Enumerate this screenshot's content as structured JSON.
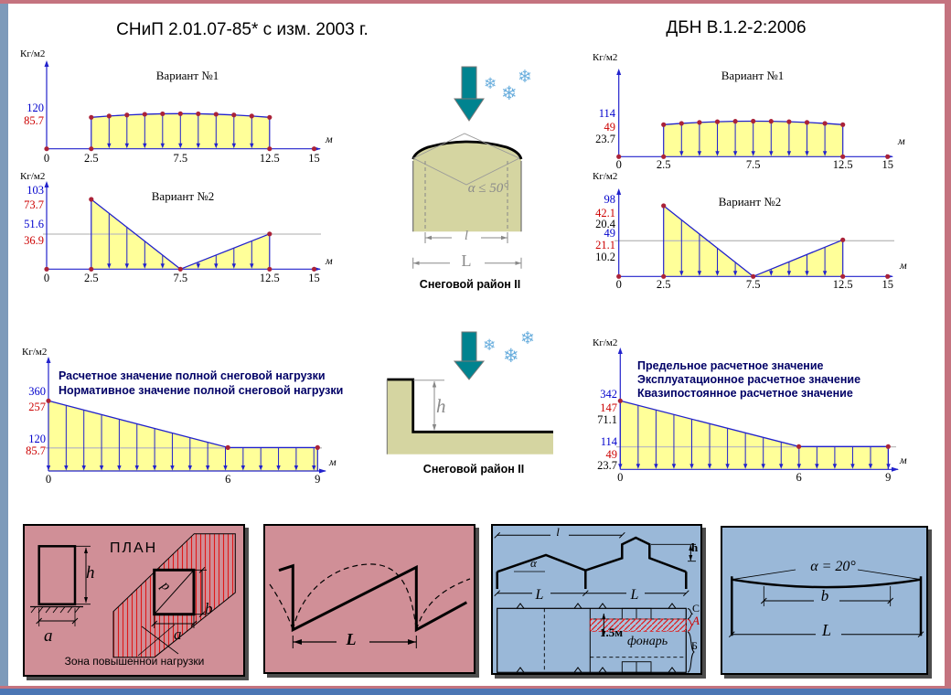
{
  "titles": {
    "left": "СНиП 2.01.07-85* с изм. 2003 г.",
    "right": "ДБН В.1.2-2:2006"
  },
  "colors": {
    "blue": "#0000cc",
    "red": "#cc0000",
    "black": "#000000",
    "navy": "#000066",
    "axis": "#2222cc",
    "dot": "#aa2238",
    "yellow": "#ffff99",
    "gray_line": "#bdbdbd",
    "panel_pink": "#d08f97",
    "panel_blue": "#9ab8d8",
    "building": "#d5d5a1",
    "arrow_teal": "#00838f",
    "snowflake": "#6aaedd",
    "hatch_red": "#e01818"
  },
  "icons": {
    "snowflake": "❄"
  },
  "charts": {
    "snip_v1": {
      "unit": "Кг/м2",
      "x_unit": "м",
      "title": "Вариант №1",
      "y_labels": [
        {
          "text": "120",
          "color": "blue"
        },
        {
          "text": "85.7",
          "color": "red"
        }
      ],
      "x_ticks": [
        "0",
        "2.5",
        "7.5",
        "12.5",
        "15"
      ]
    },
    "snip_v2": {
      "unit": "Кг/м2",
      "x_unit": "м",
      "title": "Вариант №2",
      "y_labels": [
        {
          "text": "103",
          "color": "blue"
        },
        {
          "text": "73.7",
          "color": "red"
        },
        {
          "text": "51.6",
          "color": "blue"
        },
        {
          "text": "36.9",
          "color": "red"
        }
      ],
      "x_ticks": [
        "0",
        "2.5",
        "7.5",
        "12.5",
        "15"
      ]
    },
    "dbn_v1": {
      "unit": "Кг/м2",
      "x_unit": "м",
      "title": "Вариант №1",
      "y_labels": [
        {
          "text": "114",
          "color": "blue"
        },
        {
          "text": "49",
          "color": "red"
        },
        {
          "text": "23.7",
          "color": "black"
        }
      ],
      "x_ticks": [
        "0",
        "2.5",
        "7.5",
        "12.5",
        "15"
      ]
    },
    "dbn_v2": {
      "unit": "Кг/м2",
      "x_unit": "м",
      "title": "Вариант №2",
      "y_labels": [
        {
          "text": "98",
          "color": "blue"
        },
        {
          "text": "42.1",
          "color": "red"
        },
        {
          "text": "20.4",
          "color": "black"
        },
        {
          "text": "49",
          "color": "blue"
        },
        {
          "text": "21.1",
          "color": "red"
        },
        {
          "text": "10.2",
          "color": "black"
        }
      ],
      "x_ticks": [
        "0",
        "2.5",
        "7.5",
        "12.5",
        "15"
      ]
    },
    "snip_full": {
      "unit": "Кг/м2",
      "x_unit": "м",
      "annotations": [
        "Расчетное значение полной снеговой нагрузки",
        "Нормативное значение полной снеговой нагрузки"
      ],
      "y_labels": [
        {
          "text": "360",
          "color": "blue"
        },
        {
          "text": "257",
          "color": "red"
        },
        {
          "text": "120",
          "color": "blue"
        },
        {
          "text": "85.7",
          "color": "red"
        }
      ],
      "x_ticks": [
        "0",
        "6",
        "9"
      ]
    },
    "dbn_full": {
      "unit": "Кг/м2",
      "x_unit": "м",
      "annotations": [
        "Предельное расчетное значение",
        "Эксплуатационное расчетное значение",
        "Квазипостоянное расчетное значение"
      ],
      "y_labels": [
        {
          "text": "342",
          "color": "blue"
        },
        {
          "text": "147",
          "color": "red"
        },
        {
          "text": "71.1",
          "color": "black"
        },
        {
          "text": "114",
          "color": "blue"
        },
        {
          "text": "49",
          "color": "red"
        },
        {
          "text": "23.7",
          "color": "black"
        }
      ],
      "x_ticks": [
        "0",
        "6",
        "9"
      ]
    }
  },
  "center": {
    "top": {
      "caption": "Снеговой район II",
      "angle": "α ≤ 50°",
      "dim_inner": "l",
      "dim_outer": "L"
    },
    "bottom": {
      "caption": "Снеговой район II",
      "height": "h"
    }
  },
  "panels": {
    "plan": {
      "title": "ПЛАН",
      "caption": "Зона повышеннои нагрузки",
      "h": "h",
      "a_left": "a",
      "d": "d",
      "b": "b",
      "a_right": "a"
    },
    "sawtooth": {
      "L": "L"
    },
    "lantern": {
      "l": "l",
      "alpha": "α",
      "h": "h",
      "L_left": "L",
      "L_right": "L",
      "strip": "1.5м",
      "name": "фонарь",
      "zone_c": "С",
      "zone_a": "А",
      "zone_b": "Б"
    },
    "sag": {
      "angle": "α = 20°",
      "b": "b",
      "L": "L"
    }
  },
  "chart_data": [
    {
      "type": "area",
      "code": "СНиП 2.01.07-85* с изм. 2003 г.",
      "title": "Вариант №1",
      "ylabel": "Кг/м2",
      "xlabel": "м",
      "xlim": [
        0,
        15
      ],
      "span": [
        2.5,
        12.5
      ],
      "series": [
        {
          "name": "расчетное значение",
          "value": 120
        },
        {
          "name": "нормативное значение",
          "value": 85.7
        }
      ],
      "shape": "uniform load over span 2.5–12.5 m, slightly arched"
    },
    {
      "type": "area",
      "code": "СНиП 2.01.07-85* с изм. 2003 г.",
      "title": "Вариант №2",
      "ylabel": "Кг/м2",
      "xlabel": "м",
      "xlim": [
        0,
        15
      ],
      "x": [
        2.5,
        7.5,
        12.5
      ],
      "series": [
        {
          "name": "расчетное значение",
          "values": [
            103,
            0,
            51.6
          ]
        },
        {
          "name": "нормативное значение",
          "values": [
            73.7,
            0,
            36.9
          ]
        }
      ],
      "shape": "triangular drift load, zero at mid-span 7.5 m"
    },
    {
      "type": "area",
      "code": "ДБН В.1.2-2:2006",
      "title": "Вариант №1",
      "ylabel": "Кг/м2",
      "xlabel": "м",
      "xlim": [
        0,
        15
      ],
      "span": [
        2.5,
        12.5
      ],
      "series": [
        {
          "name": "предельное расчетное значение",
          "value": 114
        },
        {
          "name": "эксплуатационное расчетное значение",
          "value": 49
        },
        {
          "name": "квазипостоянное расчетное значение",
          "value": 23.7
        }
      ],
      "shape": "uniform load over span 2.5–12.5 m, slightly arched"
    },
    {
      "type": "area",
      "code": "ДБН В.1.2-2:2006",
      "title": "Вариант №2",
      "ylabel": "Кг/м2",
      "xlabel": "м",
      "xlim": [
        0,
        15
      ],
      "x": [
        2.5,
        7.5,
        12.5
      ],
      "series": [
        {
          "name": "предельное расчетное значение",
          "values": [
            98,
            0,
            49
          ]
        },
        {
          "name": "эксплуатационное расчетное значение",
          "values": [
            42.1,
            0,
            21.1
          ]
        },
        {
          "name": "квазипостоянное расчетное значение",
          "values": [
            20.4,
            0,
            10.2
          ]
        }
      ],
      "shape": "triangular drift load, zero at mid-span 7.5 m"
    },
    {
      "type": "area",
      "code": "СНиП 2.01.07-85* с изм. 2003 г.",
      "annotations": [
        "Расчетное значение полной снеговой нагрузки",
        "Нормативное значение полной снеговой нагрузки"
      ],
      "ylabel": "Кг/м2",
      "xlabel": "м",
      "xlim": [
        0,
        9
      ],
      "x": [
        0,
        6,
        9
      ],
      "series": [
        {
          "name": "расчетное",
          "values": [
            360,
            120,
            120
          ]
        },
        {
          "name": "нормативное",
          "values": [
            257,
            85.7,
            85.7
          ]
        }
      ],
      "shape": "drift at roof step: linear decrease 0–6 m, constant 6–9 m"
    },
    {
      "type": "area",
      "code": "ДБН В.1.2-2:2006",
      "annotations": [
        "Предельное расчетное значение",
        "Эксплуатационное расчетное значение",
        "Квазипостоянное расчетное значение"
      ],
      "ylabel": "Кг/м2",
      "xlabel": "м",
      "xlim": [
        0,
        9
      ],
      "x": [
        0,
        6,
        9
      ],
      "series": [
        {
          "name": "предельное",
          "values": [
            342,
            114,
            114
          ]
        },
        {
          "name": "эксплуатационное",
          "values": [
            147,
            49,
            49
          ]
        },
        {
          "name": "квазипостоянное",
          "values": [
            71.1,
            23.7,
            23.7
          ]
        }
      ],
      "shape": "drift at roof step: linear decrease 0–6 m, constant 6–9 m"
    }
  ]
}
